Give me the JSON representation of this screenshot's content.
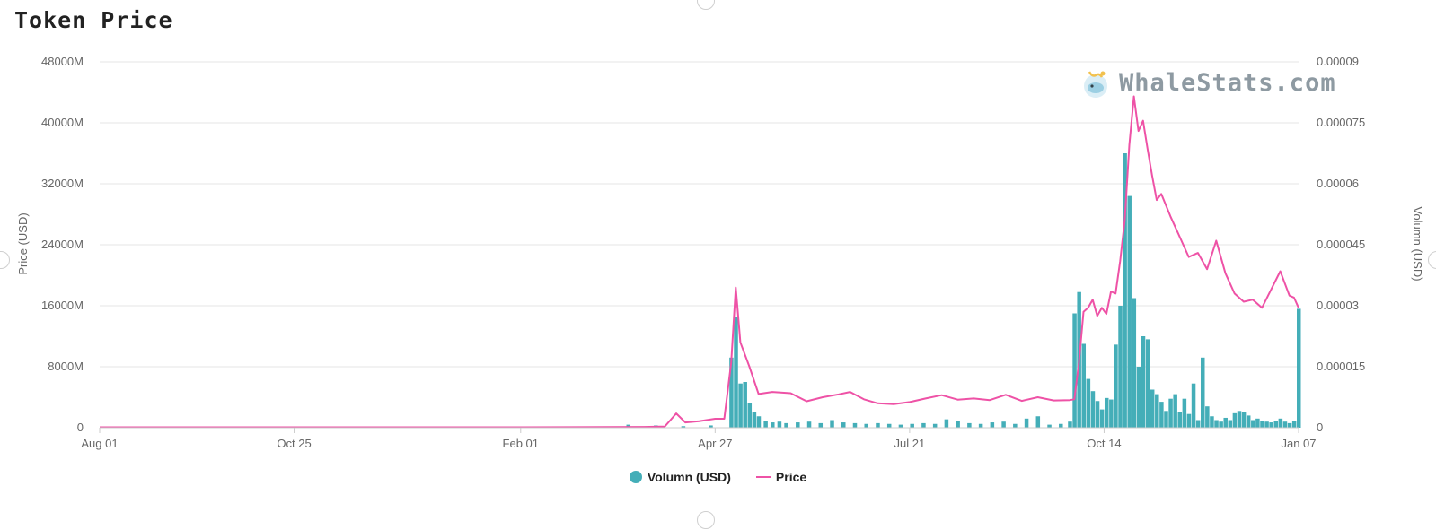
{
  "title": "Token Price",
  "watermark": {
    "text": "WhaleStats.com",
    "logo_icon": "whale-logo-icon"
  },
  "colors": {
    "volume": "#44aeb8",
    "price": "#ee52a6",
    "grid": "#e6e6e6",
    "text": "#666666"
  },
  "chart_data": {
    "type": "bar+line",
    "title": "Token Price",
    "x_axis": {
      "type": "date",
      "ticks": [
        "Aug 01",
        "Oct 25",
        "Feb 01",
        "Apr 27",
        "Jul 21",
        "Oct 14",
        "Jan 07"
      ]
    },
    "y_left": {
      "label": "Price (USD)",
      "range": [
        0,
        48000
      ],
      "ticks": [
        "0",
        "8000M",
        "16000M",
        "24000M",
        "32000M",
        "40000M",
        "48000M"
      ]
    },
    "y_right": {
      "label": "Volumn (USD)",
      "range": [
        0,
        9e-05
      ],
      "ticks": [
        "0",
        "0.000015",
        "0.00003",
        "0.000045",
        "0.00006",
        "0.000075",
        "0.00009"
      ]
    },
    "grid": true,
    "legend": "bottom-center",
    "series": [
      {
        "name": "Volumn (USD)",
        "type": "bar",
        "axis": "left",
        "unit": "M",
        "x": [
          "Mar 20",
          "Apr 01",
          "Apr 13",
          "Apr 25",
          "May 04",
          "May 06",
          "May 08",
          "May 10",
          "May 12",
          "May 14",
          "May 16",
          "May 19",
          "May 22",
          "May 25",
          "May 28",
          "Jun 02",
          "Jun 07",
          "Jun 12",
          "Jun 17",
          "Jun 22",
          "Jun 27",
          "Jul 02",
          "Jul 07",
          "Jul 12",
          "Jul 17",
          "Jul 22",
          "Jul 27",
          "Aug 01",
          "Aug 06",
          "Aug 11",
          "Aug 16",
          "Aug 21",
          "Aug 26",
          "Aug 31",
          "Sep 05",
          "Sep 10",
          "Sep 15",
          "Sep 20",
          "Sep 25",
          "Sep 29",
          "Oct 01",
          "Oct 03",
          "Oct 05",
          "Oct 07",
          "Oct 09",
          "Oct 11",
          "Oct 13",
          "Oct 15",
          "Oct 17",
          "Oct 19",
          "Oct 21",
          "Oct 23",
          "Oct 25",
          "Oct 27",
          "Oct 29",
          "Oct 31",
          "Nov 02",
          "Nov 04",
          "Nov 06",
          "Nov 08",
          "Nov 10",
          "Nov 12",
          "Nov 14",
          "Nov 16",
          "Nov 18",
          "Nov 20",
          "Nov 22",
          "Nov 24",
          "Nov 26",
          "Nov 28",
          "Nov 30",
          "Dec 02",
          "Dec 04",
          "Dec 06",
          "Dec 08",
          "Dec 10",
          "Dec 12",
          "Dec 14",
          "Dec 16",
          "Dec 18",
          "Dec 20",
          "Dec 22",
          "Dec 24",
          "Dec 26",
          "Dec 28",
          "Dec 30",
          "Jan 01",
          "Jan 03",
          "Jan 05",
          "Jan 07"
        ],
        "values": [
          400,
          300,
          200,
          300,
          9200,
          14500,
          5800,
          6000,
          3200,
          2000,
          1500,
          900,
          700,
          800,
          600,
          700,
          800,
          600,
          1000,
          700,
          600,
          500,
          600,
          500,
          400,
          500,
          600,
          500,
          1100,
          900,
          600,
          500,
          700,
          800,
          500,
          1200,
          1500,
          400,
          500,
          800,
          15000,
          17800,
          11000,
          6400,
          4800,
          3500,
          2400,
          3900,
          3700,
          10900,
          16000,
          36000,
          30400,
          17000,
          8000,
          12000,
          11600,
          5000,
          4400,
          3400,
          2200,
          3800,
          4400,
          2000,
          3800,
          1800,
          5800,
          1000,
          9200,
          2800,
          1500,
          1000,
          800,
          1300,
          1000,
          1900,
          2200,
          2000,
          1600,
          1000,
          1200,
          900,
          800,
          700,
          900,
          1200,
          800,
          600,
          900,
          15600
        ]
      },
      {
        "name": "Price",
        "type": "line",
        "axis": "right",
        "x": [
          "Aug 01",
          "Oct 25",
          "Feb 01",
          "Mar 27",
          "Apr 05",
          "Apr 10",
          "Apr 14",
          "Apr 20",
          "Apr 27",
          "May 01",
          "May 04",
          "May 06",
          "May 08",
          "May 12",
          "May 16",
          "May 22",
          "May 30",
          "Jun 06",
          "Jun 13",
          "Jun 20",
          "Jun 25",
          "Jul 01",
          "Jul 07",
          "Jul 14",
          "Jul 21",
          "Jul 28",
          "Aug 04",
          "Aug 11",
          "Aug 18",
          "Aug 25",
          "Sep 01",
          "Sep 08",
          "Sep 15",
          "Sep 22",
          "Sep 29",
          "Oct 01",
          "Oct 03",
          "Oct 05",
          "Oct 07",
          "Oct 09",
          "Oct 11",
          "Oct 13",
          "Oct 15",
          "Oct 17",
          "Oct 19",
          "Oct 21",
          "Oct 23",
          "Oct 25",
          "Oct 27",
          "Oct 29",
          "Oct 31",
          "Nov 02",
          "Nov 04",
          "Nov 06",
          "Nov 08",
          "Nov 12",
          "Nov 16",
          "Nov 20",
          "Nov 24",
          "Nov 28",
          "Dec 02",
          "Dec 06",
          "Dec 10",
          "Dec 14",
          "Dec 18",
          "Dec 22",
          "Dec 26",
          "Dec 30",
          "Jan 03",
          "Jan 05",
          "Jan 07"
        ],
        "values": [
          1e-07,
          1e-07,
          1e-07,
          2e-07,
          3e-07,
          3.5e-06,
          1.3e-06,
          1.6e-06,
          2.2e-06,
          2.2e-06,
          1.6e-05,
          3.45e-05,
          2.1e-05,
          1.5e-05,
          8.3e-06,
          8.8e-06,
          8.5e-06,
          6.5e-06,
          7.5e-06,
          8.2e-06,
          8.8e-06,
          7e-06,
          6e-06,
          5.8e-06,
          6.3e-06,
          7.2e-06,
          8e-06,
          6.9e-06,
          7.2e-06,
          6.8e-06,
          8.1e-06,
          6.6e-06,
          7.5e-06,
          6.7e-06,
          6.8e-06,
          7e-06,
          1.6e-05,
          2.85e-05,
          2.95e-05,
          3.15e-05,
          2.75e-05,
          2.95e-05,
          2.8e-05,
          3.35e-05,
          3.3e-05,
          4.1e-05,
          5.1e-05,
          6.95e-05,
          8.15e-05,
          7.3e-05,
          7.55e-05,
          6.85e-05,
          6.2e-05,
          5.6e-05,
          5.75e-05,
          5.2e-05,
          4.7e-05,
          4.2e-05,
          4.3e-05,
          3.9e-05,
          4.6e-05,
          3.8e-05,
          3.3e-05,
          3.1e-05,
          3.15e-05,
          2.95e-05,
          3.4e-05,
          3.85e-05,
          3.25e-05,
          3.2e-05,
          2.95e-05
        ]
      }
    ]
  },
  "legend_items": [
    {
      "label": "Volumn (USD)"
    },
    {
      "label": "Price"
    }
  ]
}
